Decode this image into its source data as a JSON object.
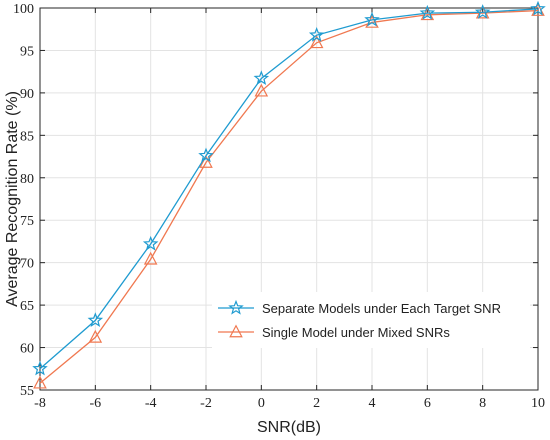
{
  "chart_data": {
    "type": "line",
    "xlabel": "SNR(dB)",
    "ylabel": "Average Recognition Rate (%)",
    "xlim": [
      -8,
      10
    ],
    "ylim": [
      55,
      100
    ],
    "x_ticks": [
      -8,
      -6,
      -4,
      -2,
      0,
      2,
      4,
      6,
      8,
      10
    ],
    "y_ticks": [
      55,
      60,
      65,
      70,
      75,
      80,
      85,
      90,
      95,
      100
    ],
    "grid": true,
    "legend_position": "bottom-right",
    "x": [
      -8,
      -6,
      -4,
      -2,
      0,
      2,
      4,
      6,
      8,
      10
    ],
    "series": [
      {
        "name": "Separate Models under Each Target SNR",
        "values": [
          57.5,
          63.2,
          72.2,
          82.6,
          91.7,
          96.8,
          98.6,
          99.4,
          99.5,
          99.9
        ],
        "color": "#1f9bd0",
        "marker": "star"
      },
      {
        "name": "Single Model under Mixed SNRs",
        "values": [
          55.8,
          61.2,
          70.4,
          81.8,
          90.2,
          95.9,
          98.3,
          99.2,
          99.4,
          99.7
        ],
        "color": "#f07850",
        "marker": "triangle"
      }
    ]
  }
}
